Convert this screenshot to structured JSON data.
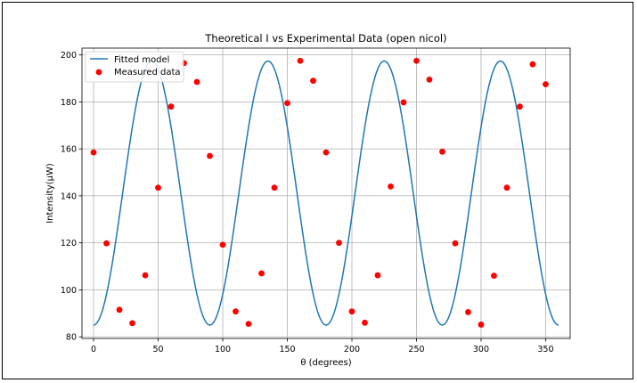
{
  "chart_data": {
    "type": "line",
    "title": "Theoretical I vs Experimental Data (open nicol)",
    "xlabel": "θ (degrees)",
    "ylabel": "Intensity(μW)",
    "xlim": [
      -9,
      369
    ],
    "ylim": [
      79.3,
      202.9
    ],
    "xticks": [
      0,
      50,
      100,
      150,
      200,
      250,
      300,
      350
    ],
    "yticks": [
      80,
      100,
      120,
      140,
      160,
      180,
      200
    ],
    "grid": true,
    "legend_position": "top-left",
    "series": [
      {
        "name": "Fitted model",
        "kind": "line",
        "color": "#1f77b4",
        "model": {
          "offset": 141.2,
          "amplitude": 56.2,
          "period_deg": 90,
          "phase_deg": -22.5
        },
        "x_range": [
          0,
          360
        ]
      },
      {
        "name": "Measured data",
        "kind": "scatter",
        "color": "#ff0000",
        "x": [
          0,
          10,
          20,
          30,
          40,
          50,
          60,
          70,
          80,
          90,
          100,
          110,
          120,
          130,
          140,
          150,
          160,
          170,
          180,
          190,
          200,
          210,
          220,
          230,
          240,
          250,
          260,
          270,
          280,
          290,
          300,
          310,
          320,
          330,
          340,
          350
        ],
        "y": [
          158.5,
          119.8,
          91.5,
          85.8,
          106.2,
          143.5,
          178.0,
          196.5,
          188.5,
          157.0,
          119.2,
          90.8,
          85.5,
          107.0,
          143.5,
          179.5,
          197.5,
          189.0,
          158.5,
          120.0,
          90.8,
          86.0,
          106.2,
          144.0,
          179.8,
          197.5,
          189.5,
          158.8,
          119.8,
          90.5,
          85.2,
          106.0,
          143.5,
          178.0,
          196.0,
          187.5
        ]
      }
    ]
  }
}
